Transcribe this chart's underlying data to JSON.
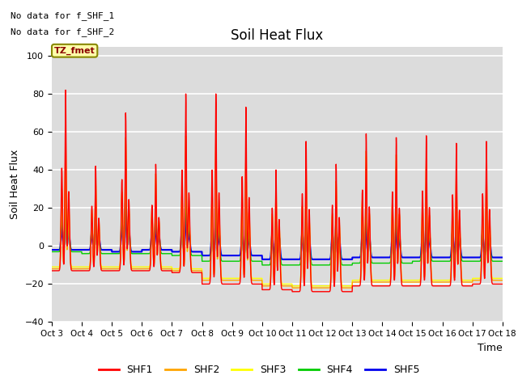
{
  "title": "Soil Heat Flux",
  "ylabel": "Soil Heat Flux",
  "xlabel": "Time",
  "ylim": [
    -40,
    105
  ],
  "yticks": [
    -40,
    -20,
    0,
    20,
    40,
    60,
    80,
    100
  ],
  "colors": {
    "SHF1": "#FF0000",
    "SHF2": "#FFA500",
    "SHF3": "#FFFF00",
    "SHF4": "#00CC00",
    "SHF5": "#0000EE"
  },
  "annotations": [
    "No data for f_SHF_1",
    "No data for f_SHF_2"
  ],
  "box_label": "TZ_fmet",
  "x_tick_labels": [
    "Oct 3",
    "Oct 4",
    "Oct 5",
    "Oct 6",
    "Oct 7",
    "Oct 8",
    "Oct 9",
    "Oct 10",
    "Oct 11",
    "Oct 12",
    "Oct 13",
    "Oct 14",
    "Oct 15",
    "Oct 16",
    "Oct 17",
    "Oct 18"
  ],
  "plot_bg_color": "#DCDCDC",
  "fig_bg_color": "#FFFFFF",
  "legend_entries": [
    "SHF1",
    "SHF2",
    "SHF3",
    "SHF4",
    "SHF5"
  ],
  "n_days": 15,
  "points_per_day": 144
}
